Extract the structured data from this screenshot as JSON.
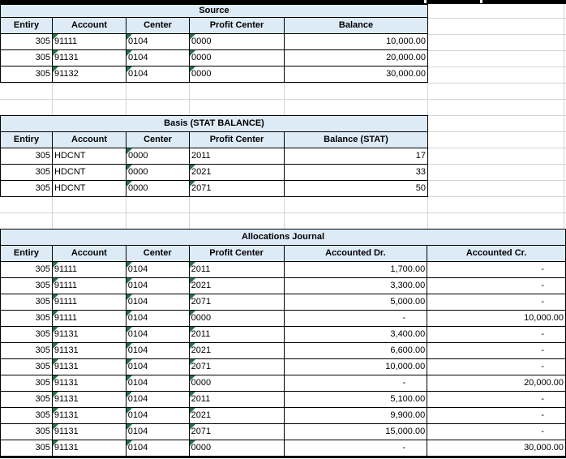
{
  "theme": {
    "header_fill": "#DDEBF7",
    "grid_color": "#d4d4d4",
    "border_color": "#000000",
    "flag_color": "#217346"
  },
  "tables": [
    {
      "id": "source",
      "title": "Source",
      "columns": [
        "Entiry",
        "Account",
        "Center",
        "Profit Center",
        "Balance"
      ],
      "rows": [
        {
          "entry": "305",
          "account": "91111",
          "center": "0104",
          "profit_center": "0000",
          "amount1": "10,000.00",
          "flags": [
            "account",
            "center",
            "profit_center"
          ]
        },
        {
          "entry": "305",
          "account": "91131",
          "center": "0104",
          "profit_center": "0000",
          "amount1": "20,000.00",
          "flags": [
            "account",
            "center",
            "profit_center"
          ]
        },
        {
          "entry": "305",
          "account": "91132",
          "center": "0104",
          "profit_center": "0000",
          "amount1": "30,000.00",
          "flags": [
            "account",
            "center",
            "profit_center"
          ]
        }
      ]
    },
    {
      "id": "basis",
      "title": "Basis (STAT BALANCE)",
      "columns": [
        "Entiry",
        "Account",
        "Center",
        "Profit Center",
        "Balance (STAT)"
      ],
      "rows": [
        {
          "entry": "305",
          "account": "HDCNT",
          "center": "0000",
          "profit_center": "2011",
          "amount1": "17",
          "flags": [
            "center"
          ]
        },
        {
          "entry": "305",
          "account": "HDCNT",
          "center": "0000",
          "profit_center": "2021",
          "amount1": "33",
          "flags": [
            "center",
            "profit_center"
          ]
        },
        {
          "entry": "305",
          "account": "HDCNT",
          "center": "0000",
          "profit_center": "2071",
          "amount1": "50",
          "flags": [
            "center",
            "profit_center"
          ]
        }
      ]
    },
    {
      "id": "allocations",
      "title": "Allocations Journal",
      "columns": [
        "Entiry",
        "Account",
        "Center",
        "Profit Center",
        "Accounted Dr.",
        "Accounted Cr."
      ],
      "rows": [
        {
          "entry": "305",
          "account": "91111",
          "center": "0104",
          "profit_center": "2011",
          "amount1": "1,700.00",
          "amount2": "-",
          "flags": [
            "account",
            "center",
            "profit_center"
          ]
        },
        {
          "entry": "305",
          "account": "91111",
          "center": "0104",
          "profit_center": "2021",
          "amount1": "3,300.00",
          "amount2": "-",
          "flags": [
            "account",
            "center",
            "profit_center"
          ]
        },
        {
          "entry": "305",
          "account": "91111",
          "center": "0104",
          "profit_center": "2071",
          "amount1": "5,000.00",
          "amount2": "-",
          "flags": [
            "account",
            "center",
            "profit_center"
          ]
        },
        {
          "entry": "305",
          "account": "91111",
          "center": "0104",
          "profit_center": "0000",
          "amount1": "-",
          "amount2": "10,000.00",
          "flags": [
            "account",
            "center",
            "profit_center"
          ]
        },
        {
          "entry": "305",
          "account": "91131",
          "center": "0104",
          "profit_center": "2011",
          "amount1": "3,400.00",
          "amount2": "-",
          "flags": [
            "account",
            "center",
            "profit_center"
          ]
        },
        {
          "entry": "305",
          "account": "91131",
          "center": "0104",
          "profit_center": "2021",
          "amount1": "6,600.00",
          "amount2": "-",
          "flags": [
            "account",
            "center",
            "profit_center"
          ]
        },
        {
          "entry": "305",
          "account": "91131",
          "center": "0104",
          "profit_center": "2071",
          "amount1": "10,000.00",
          "amount2": "-",
          "flags": [
            "account",
            "center",
            "profit_center"
          ]
        },
        {
          "entry": "305",
          "account": "91131",
          "center": "0104",
          "profit_center": "0000",
          "amount1": "-",
          "amount2": "20,000.00",
          "flags": [
            "account",
            "center",
            "profit_center"
          ]
        },
        {
          "entry": "305",
          "account": "91131",
          "center": "0104",
          "profit_center": "2011",
          "amount1": "5,100.00",
          "amount2": "-",
          "flags": [
            "account",
            "center",
            "profit_center"
          ]
        },
        {
          "entry": "305",
          "account": "91131",
          "center": "0104",
          "profit_center": "2021",
          "amount1": "9,900.00",
          "amount2": "-",
          "flags": [
            "account",
            "center",
            "profit_center"
          ]
        },
        {
          "entry": "305",
          "account": "91131",
          "center": "0104",
          "profit_center": "2071",
          "amount1": "15,000.00",
          "amount2": "-",
          "flags": [
            "account",
            "center",
            "profit_center"
          ]
        },
        {
          "entry": "305",
          "account": "91131",
          "center": "0104",
          "profit_center": "0000",
          "amount1": "-",
          "amount2": "30,000.00",
          "flags": [
            "account",
            "center",
            "profit_center"
          ]
        }
      ]
    }
  ]
}
